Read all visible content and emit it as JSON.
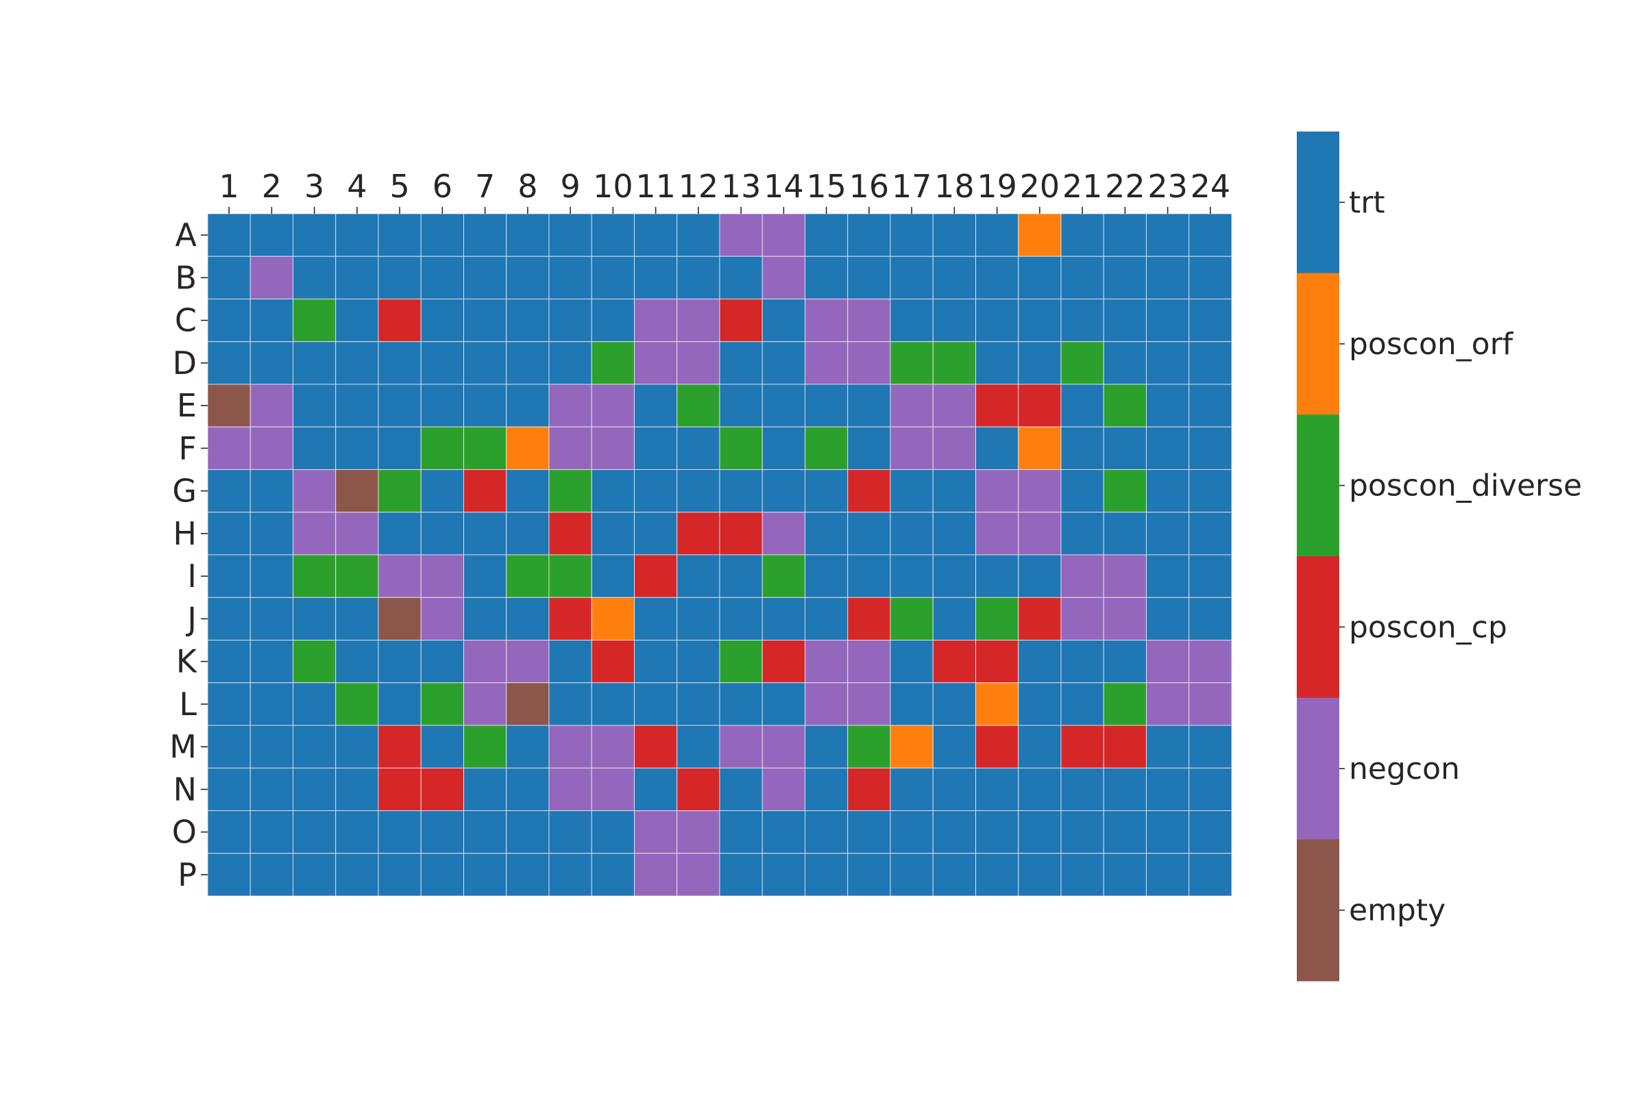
{
  "chart_data": {
    "type": "heatmap",
    "title": "",
    "xlabel": "",
    "ylabel": "",
    "columns": [
      "1",
      "2",
      "3",
      "4",
      "5",
      "6",
      "7",
      "8",
      "9",
      "10",
      "11",
      "12",
      "13",
      "14",
      "15",
      "16",
      "17",
      "18",
      "19",
      "20",
      "21",
      "22",
      "23",
      "24"
    ],
    "rows": [
      "A",
      "B",
      "C",
      "D",
      "E",
      "F",
      "G",
      "H",
      "I",
      "J",
      "K",
      "L",
      "M",
      "N",
      "O",
      "P"
    ],
    "categories": [
      {
        "name": "trt",
        "color": "#1f77b4"
      },
      {
        "name": "poscon_orf",
        "color": "#ff7f0e"
      },
      {
        "name": "poscon_diverse",
        "color": "#2ca02c"
      },
      {
        "name": "poscon_cp",
        "color": "#d62728"
      },
      {
        "name": "negcon",
        "color": "#9467bd"
      },
      {
        "name": "empty",
        "color": "#8c564b"
      }
    ],
    "grid_lines": true,
    "legend": "colorbar-right",
    "values": [
      [
        "trt",
        "trt",
        "trt",
        "trt",
        "trt",
        "trt",
        "trt",
        "trt",
        "trt",
        "trt",
        "trt",
        "trt",
        "negcon",
        "negcon",
        "trt",
        "trt",
        "trt",
        "trt",
        "trt",
        "poscon_orf",
        "trt",
        "trt",
        "trt",
        "trt"
      ],
      [
        "trt",
        "negcon",
        "trt",
        "trt",
        "trt",
        "trt",
        "trt",
        "trt",
        "trt",
        "trt",
        "trt",
        "trt",
        "trt",
        "negcon",
        "trt",
        "trt",
        "trt",
        "trt",
        "trt",
        "trt",
        "trt",
        "trt",
        "trt",
        "trt"
      ],
      [
        "trt",
        "trt",
        "poscon_diverse",
        "trt",
        "poscon_cp",
        "trt",
        "trt",
        "trt",
        "trt",
        "trt",
        "negcon",
        "negcon",
        "poscon_cp",
        "trt",
        "negcon",
        "negcon",
        "trt",
        "trt",
        "trt",
        "trt",
        "trt",
        "trt",
        "trt",
        "trt"
      ],
      [
        "trt",
        "trt",
        "trt",
        "trt",
        "trt",
        "trt",
        "trt",
        "trt",
        "trt",
        "poscon_diverse",
        "negcon",
        "negcon",
        "trt",
        "trt",
        "negcon",
        "negcon",
        "poscon_diverse",
        "poscon_diverse",
        "trt",
        "trt",
        "poscon_diverse",
        "trt",
        "trt",
        "trt"
      ],
      [
        "empty",
        "negcon",
        "trt",
        "trt",
        "trt",
        "trt",
        "trt",
        "trt",
        "negcon",
        "negcon",
        "trt",
        "poscon_diverse",
        "trt",
        "trt",
        "trt",
        "trt",
        "negcon",
        "negcon",
        "poscon_cp",
        "poscon_cp",
        "trt",
        "poscon_diverse",
        "trt",
        "trt"
      ],
      [
        "negcon",
        "negcon",
        "trt",
        "trt",
        "trt",
        "poscon_diverse",
        "poscon_diverse",
        "poscon_orf",
        "negcon",
        "negcon",
        "trt",
        "trt",
        "poscon_diverse",
        "trt",
        "poscon_diverse",
        "trt",
        "negcon",
        "negcon",
        "trt",
        "poscon_orf",
        "trt",
        "trt",
        "trt",
        "trt"
      ],
      [
        "trt",
        "trt",
        "negcon",
        "empty",
        "poscon_diverse",
        "trt",
        "poscon_cp",
        "trt",
        "poscon_diverse",
        "trt",
        "trt",
        "trt",
        "trt",
        "trt",
        "trt",
        "poscon_cp",
        "trt",
        "trt",
        "negcon",
        "negcon",
        "trt",
        "poscon_diverse",
        "trt",
        "trt"
      ],
      [
        "trt",
        "trt",
        "negcon",
        "negcon",
        "trt",
        "trt",
        "trt",
        "trt",
        "poscon_cp",
        "trt",
        "trt",
        "poscon_cp",
        "poscon_cp",
        "negcon",
        "trt",
        "trt",
        "trt",
        "trt",
        "negcon",
        "negcon",
        "trt",
        "trt",
        "trt",
        "trt"
      ],
      [
        "trt",
        "trt",
        "poscon_diverse",
        "poscon_diverse",
        "negcon",
        "negcon",
        "trt",
        "poscon_diverse",
        "poscon_diverse",
        "trt",
        "poscon_cp",
        "trt",
        "trt",
        "poscon_diverse",
        "trt",
        "trt",
        "trt",
        "trt",
        "trt",
        "trt",
        "negcon",
        "negcon",
        "trt",
        "trt"
      ],
      [
        "trt",
        "trt",
        "trt",
        "trt",
        "empty",
        "negcon",
        "trt",
        "trt",
        "poscon_cp",
        "poscon_orf",
        "trt",
        "trt",
        "trt",
        "trt",
        "trt",
        "poscon_cp",
        "poscon_diverse",
        "trt",
        "poscon_diverse",
        "poscon_cp",
        "negcon",
        "negcon",
        "trt",
        "trt"
      ],
      [
        "trt",
        "trt",
        "poscon_diverse",
        "trt",
        "trt",
        "trt",
        "negcon",
        "negcon",
        "trt",
        "poscon_cp",
        "trt",
        "trt",
        "poscon_diverse",
        "poscon_cp",
        "negcon",
        "negcon",
        "trt",
        "poscon_cp",
        "poscon_cp",
        "trt",
        "trt",
        "trt",
        "negcon",
        "negcon"
      ],
      [
        "trt",
        "trt",
        "trt",
        "poscon_diverse",
        "trt",
        "poscon_diverse",
        "negcon",
        "empty",
        "trt",
        "trt",
        "trt",
        "trt",
        "trt",
        "trt",
        "negcon",
        "negcon",
        "trt",
        "trt",
        "poscon_orf",
        "trt",
        "trt",
        "poscon_diverse",
        "negcon",
        "negcon"
      ],
      [
        "trt",
        "trt",
        "trt",
        "trt",
        "poscon_cp",
        "trt",
        "poscon_diverse",
        "trt",
        "negcon",
        "negcon",
        "poscon_cp",
        "trt",
        "negcon",
        "negcon",
        "trt",
        "poscon_diverse",
        "poscon_orf",
        "trt",
        "poscon_cp",
        "trt",
        "poscon_cp",
        "poscon_cp",
        "trt",
        "trt"
      ],
      [
        "trt",
        "trt",
        "trt",
        "trt",
        "poscon_cp",
        "poscon_cp",
        "trt",
        "trt",
        "negcon",
        "negcon",
        "trt",
        "poscon_cp",
        "trt",
        "negcon",
        "trt",
        "poscon_cp",
        "trt",
        "trt",
        "trt",
        "trt",
        "trt",
        "trt",
        "trt",
        "trt"
      ],
      [
        "trt",
        "trt",
        "trt",
        "trt",
        "trt",
        "trt",
        "trt",
        "trt",
        "trt",
        "trt",
        "negcon",
        "negcon",
        "trt",
        "trt",
        "trt",
        "trt",
        "trt",
        "trt",
        "trt",
        "trt",
        "trt",
        "trt",
        "trt",
        "trt"
      ],
      [
        "trt",
        "trt",
        "trt",
        "trt",
        "trt",
        "trt",
        "trt",
        "trt",
        "trt",
        "trt",
        "negcon",
        "negcon",
        "trt",
        "trt",
        "trt",
        "trt",
        "trt",
        "trt",
        "trt",
        "trt",
        "trt",
        "trt",
        "trt",
        "trt"
      ]
    ]
  }
}
